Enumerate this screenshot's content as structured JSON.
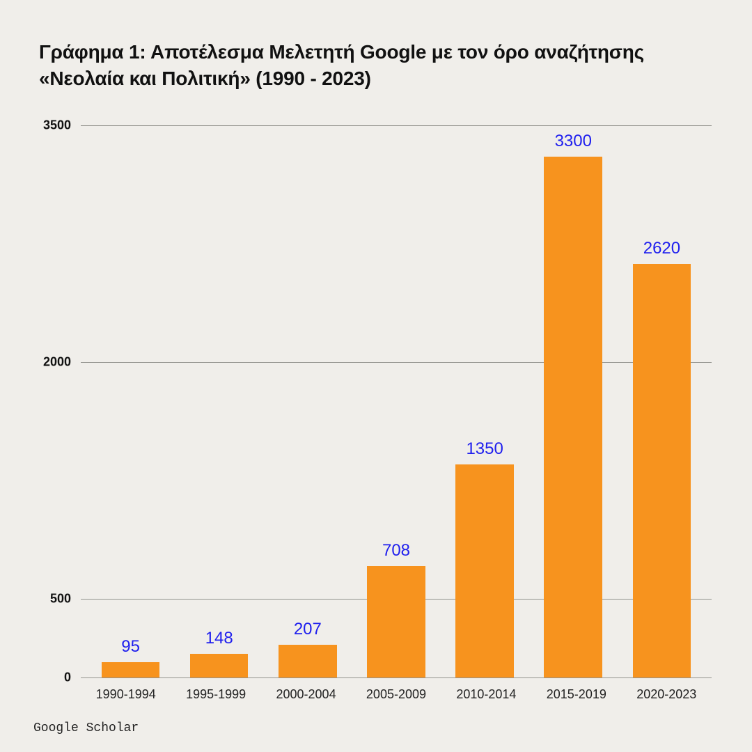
{
  "chart": {
    "type": "bar",
    "title": "Γράφημα 1: Αποτέλεσμα Μελετητή Google με τον όρο αναζήτησης «Νεολαία και Πολιτική» (1990 - 2023)",
    "title_fontsize": 28,
    "title_color": "#111111",
    "background_color": "#f0eeea",
    "bar_color": "#f7931e",
    "value_label_color": "#2020ee",
    "value_label_fontsize": 24,
    "grid_color": "#7a7a76",
    "x_label_fontsize": 18,
    "x_label_color": "#222222",
    "y_label_fontsize": 18,
    "y_label_color": "#111111",
    "ylim": [
      0,
      3500
    ],
    "y_ticks": [
      0,
      500,
      2000,
      3500
    ],
    "categories": [
      "1990-1994",
      "1995-1999",
      "2000-2004",
      "2005-2009",
      "2010-2014",
      "2015-2019",
      "2020-2023"
    ],
    "values": [
      95,
      148,
      207,
      708,
      1350,
      3300,
      2620
    ],
    "bar_width_ratio": 0.78,
    "source": "Google Scholar",
    "source_fontfamily": "monospace",
    "source_fontsize": 18
  }
}
